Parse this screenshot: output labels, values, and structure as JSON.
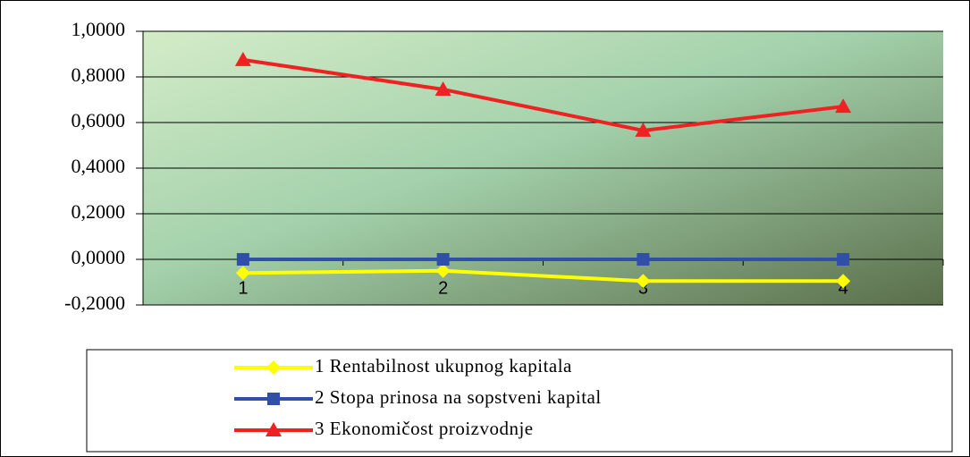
{
  "chart_data": {
    "type": "line",
    "categories": [
      "1",
      "2",
      "3",
      "4"
    ],
    "series": [
      {
        "name": "1 Rentabilnost ukupnog kapitala",
        "color": "#ffff00",
        "marker": "diamond",
        "values": [
          -0.06,
          -0.05,
          -0.095,
          -0.095
        ]
      },
      {
        "name": "2 Stopa prinosa na sopstveni kapital",
        "color": "#2f4fa8",
        "marker": "square",
        "values": [
          0,
          0,
          0,
          0
        ]
      },
      {
        "name": "3 Ekonomičost proizvodnje",
        "color": "#ee2222",
        "marker": "triangle",
        "values": [
          0.875,
          0.745,
          0.565,
          0.67
        ]
      }
    ],
    "ylim": [
      -0.2,
      1.0
    ],
    "yticks": [
      {
        "value": 1.0,
        "label": "1,0000"
      },
      {
        "value": 0.8,
        "label": "0,8000"
      },
      {
        "value": 0.6,
        "label": "0,6000"
      },
      {
        "value": 0.4,
        "label": "0,4000"
      },
      {
        "value": 0.2,
        "label": "0,2000"
      },
      {
        "value": 0,
        "label": "0,0000"
      },
      {
        "value": -0.2,
        "label": "-0,2000"
      }
    ],
    "grid": true,
    "legend": "bottom"
  }
}
